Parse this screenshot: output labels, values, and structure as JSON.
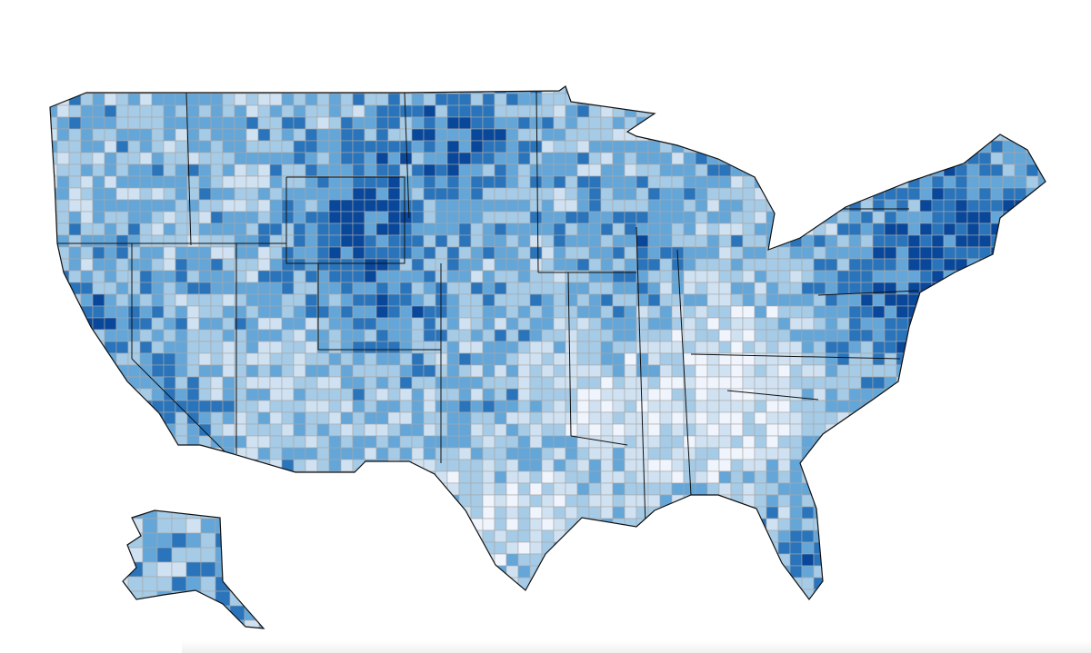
{
  "map": {
    "type": "choropleth",
    "geography": "US counties",
    "palette": [
      "#f0f4fc",
      "#d0e2f2",
      "#a6cbe6",
      "#64a6d8",
      "#2a74bb",
      "#08479a"
    ],
    "county_border_color": "#a8a8a8",
    "state_border_color": "#111111"
  }
}
